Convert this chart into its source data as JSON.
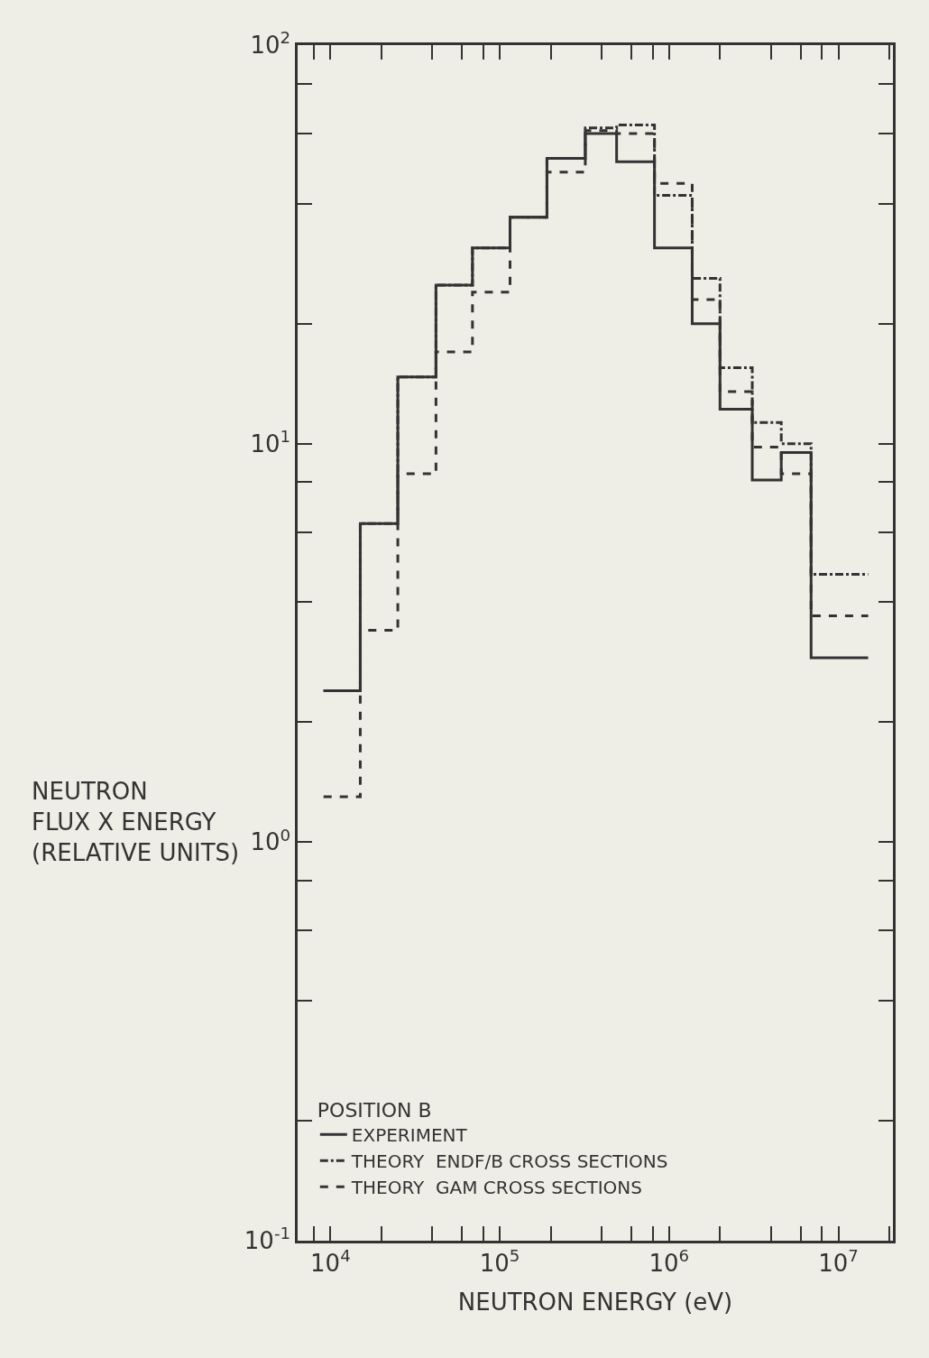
{
  "chart_data": {
    "type": "step",
    "xlabel": "NEUTRON ENERGY (eV)",
    "ylabel": "NEUTRON\nFLUX X ENERGY\n(RELATIVE UNITS)",
    "legend_title": "POSITION B",
    "x": [
      9100,
      15000,
      25000,
      42000,
      69000,
      115000,
      190000,
      320000,
      490000,
      820000,
      1370000,
      2000000,
      3100000,
      4600000,
      6900000,
      15000000
    ],
    "series": [
      {
        "name": "EXPERIMENT",
        "color": "#333333",
        "line_style": "solid",
        "values": [
          2.4,
          6.3,
          14.7,
          25,
          31,
          37,
          52,
          60,
          51,
          31,
          20,
          12.2,
          8.1,
          9.5,
          2.9,
          2.9
        ]
      },
      {
        "name": "THEORY  ENDF/B CROSS SECTIONS",
        "color": "#333333",
        "line_style": "dashdot",
        "values": [
          2.4,
          6.3,
          14.7,
          25,
          31,
          37,
          52,
          62,
          63,
          42,
          26,
          15.5,
          11.3,
          10,
          4.7,
          4.7
        ]
      },
      {
        "name": "THEORY  GAM CROSS SECTIONS",
        "color": "#333333",
        "line_style": "dashed",
        "values": [
          1.3,
          3.4,
          8.4,
          17,
          24,
          37,
          48,
          61,
          60,
          45,
          23,
          13.5,
          9.8,
          8.4,
          3.7,
          3.7
        ]
      }
    ],
    "log": "xy",
    "xlim": [
      6400,
      21000000
    ],
    "ylim": [
      0.1,
      100
    ],
    "xticks": [
      {
        "value": 8000,
        "label": null
      },
      {
        "value": 10000,
        "label": "10$^{4}$"
      },
      {
        "value": 20000,
        "label": null
      },
      {
        "value": 40000,
        "label": null
      },
      {
        "value": 60000,
        "label": null
      },
      {
        "value": 80000,
        "label": null
      },
      {
        "value": 100000,
        "label": "10$^{5}$"
      },
      {
        "value": 200000,
        "label": null
      },
      {
        "value": 400000,
        "label": null
      },
      {
        "value": 600000,
        "label": null
      },
      {
        "value": 800000,
        "label": null
      },
      {
        "value": 1000000,
        "label": "10$^{6}$"
      },
      {
        "value": 2000000,
        "label": null
      },
      {
        "value": 4000000,
        "label": null
      },
      {
        "value": 6000000,
        "label": null
      },
      {
        "value": 8000000,
        "label": null
      },
      {
        "value": 10000000,
        "label": "10$^{7}$"
      },
      {
        "value": 20000000,
        "label": null
      }
    ],
    "yticks": [
      {
        "value": 0.1,
        "label": "10$^{-1}$"
      },
      {
        "value": 0.2,
        "label": null
      },
      {
        "value": 0.4,
        "label": null
      },
      {
        "value": 0.6,
        "label": null
      },
      {
        "value": 0.8,
        "label": null
      },
      {
        "value": 1,
        "label": "10$^{0}$"
      },
      {
        "value": 2,
        "label": null
      },
      {
        "value": 4,
        "label": null
      },
      {
        "value": 6,
        "label": null
      },
      {
        "value": 8,
        "label": null
      },
      {
        "value": 10,
        "label": "10$^{1}$"
      },
      {
        "value": 20,
        "label": null
      },
      {
        "value": 40,
        "label": null
      },
      {
        "value": 60,
        "label": null
      },
      {
        "value": 80,
        "label": null
      },
      {
        "value": 100,
        "label": "10$^{2}$"
      }
    ],
    "grid": false,
    "legend": "bottom left"
  }
}
